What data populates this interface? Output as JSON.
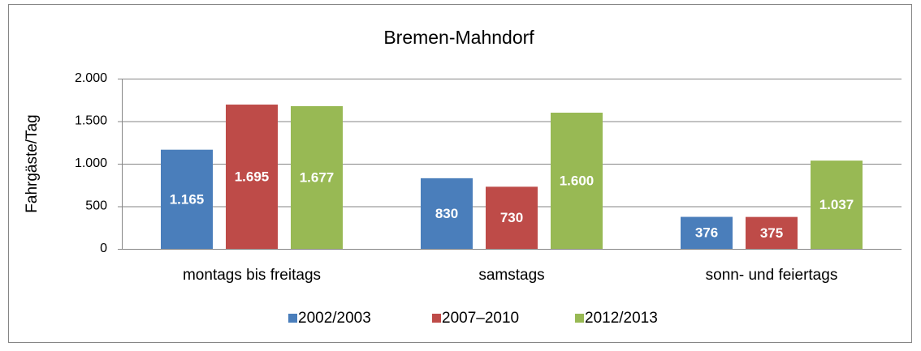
{
  "chart_data": {
    "type": "bar",
    "title": "Bremen-Mahndorf",
    "y_label": "Fahrgäste/Tag",
    "categories": [
      "montags bis freitags",
      "samstags",
      "sonn- und feiertags"
    ],
    "series": [
      {
        "name": "2002/2003",
        "color": "#4a7ebb",
        "values": [
          1165,
          830,
          376
        ],
        "value_labels": [
          "1.165",
          "830",
          "376"
        ]
      },
      {
        "name": "2007–2010",
        "color": "#be4b48",
        "values": [
          1695,
          730,
          375
        ],
        "value_labels": [
          "1.695",
          "730",
          "375"
        ]
      },
      {
        "name": "2012/2013",
        "color": "#98b954",
        "values": [
          1677,
          1600,
          1037
        ],
        "value_labels": [
          "1.677",
          "1.600",
          "1.037"
        ]
      }
    ],
    "ylim": [
      0,
      2000
    ],
    "yticks": [
      0,
      500,
      {
        "value": 1000,
        "label": "1.000"
      },
      {
        "value": 1500,
        "label": "1.500"
      },
      {
        "value": 2000,
        "label": "2.000"
      }
    ],
    "grid": true,
    "legend": "bottom"
  }
}
